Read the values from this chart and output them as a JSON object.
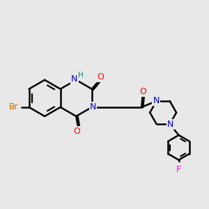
{
  "bg_color": "#e8e8e8",
  "bond_color": "#000000",
  "bond_width": 1.8,
  "atom_colors": {
    "N": "#0000cc",
    "O": "#ff0000",
    "Br": "#cc6600",
    "F": "#ff00ff",
    "H": "#008888",
    "C": "#000000"
  },
  "font_size": 8.0
}
